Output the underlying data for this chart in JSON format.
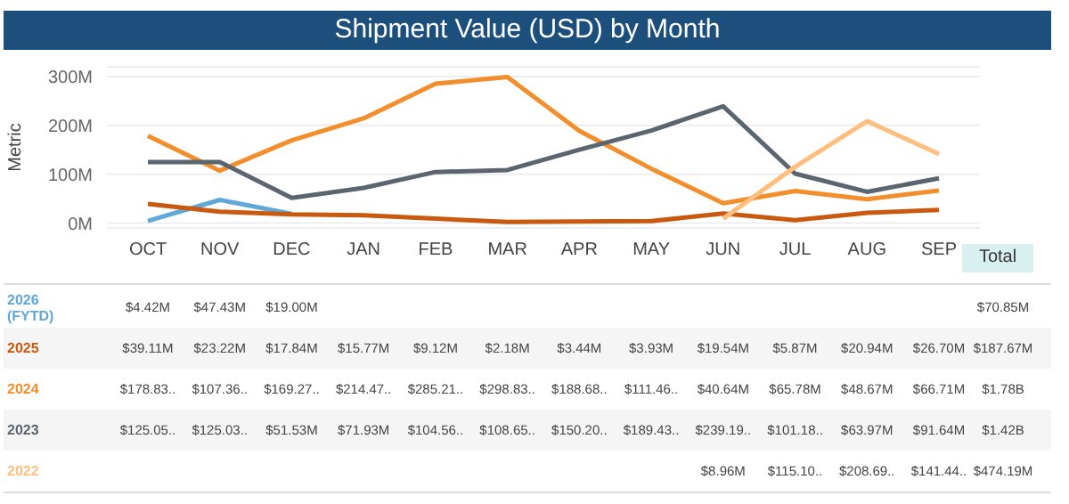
{
  "chart_data": {
    "type": "line",
    "title": "Shipment Value (USD) by Month",
    "ylabel": "Metric",
    "categories": [
      "OCT",
      "NOV",
      "DEC",
      "JAN",
      "FEB",
      "MAR",
      "APR",
      "MAY",
      "JUN",
      "JUL",
      "AUG",
      "SEP"
    ],
    "series": [
      {
        "name": "2026 (FYTD)",
        "color": "#5fa8d8",
        "values": [
          4.42,
          47.43,
          19.0,
          null,
          null,
          null,
          null,
          null,
          null,
          null,
          null,
          null
        ],
        "value_labels": [
          "$4.42M",
          "$47.43M",
          "$19.00M",
          null,
          null,
          null,
          null,
          null,
          null,
          null,
          null,
          null
        ]
      },
      {
        "name": "2025",
        "color": "#c8590f",
        "values": [
          39.11,
          23.22,
          17.84,
          15.77,
          9.12,
          2.18,
          3.44,
          3.93,
          19.54,
          5.87,
          20.94,
          26.7
        ],
        "value_labels": [
          "$39.11M",
          "$23.22M",
          "$17.84M",
          "$15.77M",
          "$9.12M",
          "$2.18M",
          "$3.44M",
          "$3.93M",
          "$19.54M",
          "$5.87M",
          "$20.94M",
          "$26.70M"
        ]
      },
      {
        "name": "2024",
        "color": "#f28e2b",
        "values": [
          178.83,
          107.36,
          169.27,
          214.47,
          285.21,
          298.83,
          188.68,
          111.46,
          40.64,
          65.78,
          48.67,
          66.71
        ],
        "value_labels": [
          "$178.83..",
          "$107.36..",
          "$169.27..",
          "$214.47..",
          "$285.21..",
          "$298.83..",
          "$188.68..",
          "$111.46..",
          "$40.64M",
          "$65.78M",
          "$48.67M",
          "$66.71M"
        ]
      },
      {
        "name": "2023",
        "color": "#5b6570",
        "values": [
          125.05,
          125.03,
          51.53,
          71.93,
          104.56,
          108.65,
          150.2,
          189.43,
          239.19,
          101.18,
          63.97,
          91.64
        ],
        "value_labels": [
          "$125.05..",
          "$125.03..",
          "$51.53M",
          "$71.93M",
          "$104.56..",
          "$108.65..",
          "$150.20..",
          "$189.43..",
          "$239.19..",
          "$101.18..",
          "$63.97M",
          "$91.64M"
        ]
      },
      {
        "name": "2022",
        "color": "#ffbe7d",
        "values": [
          null,
          null,
          null,
          null,
          null,
          null,
          null,
          null,
          8.96,
          115.1,
          208.69,
          141.44
        ],
        "value_labels": [
          null,
          null,
          null,
          null,
          null,
          null,
          null,
          null,
          "$8.96M",
          "$115.10..",
          "$208.69..",
          "$141.44.."
        ]
      }
    ],
    "ylim": [
      -10,
      320
    ],
    "yticks": [
      {
        "value": 0,
        "label": "0M"
      },
      {
        "value": 100,
        "label": "100M"
      },
      {
        "value": 200,
        "label": "200M"
      },
      {
        "value": 300,
        "label": "300M"
      }
    ],
    "grid": "y",
    "marker": "none",
    "line_style": "solid",
    "annotations": [
      "Total",
      "$70.85M",
      "$187.67M",
      "$1.78B",
      "$1.42B",
      "$474.19M"
    ]
  }
}
